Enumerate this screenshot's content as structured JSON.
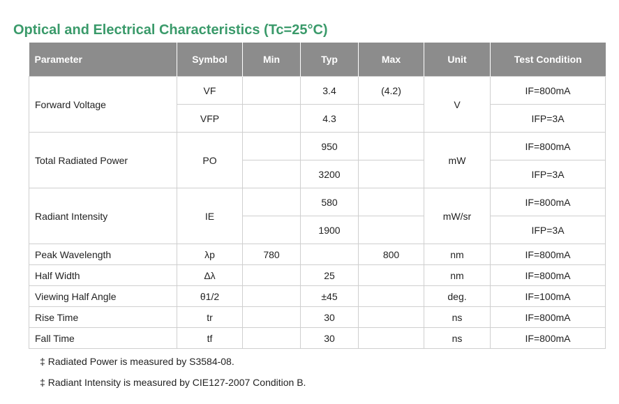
{
  "title": "Optical and Electrical Characteristics (Tc=25°C)",
  "headers": {
    "parameter": "Parameter",
    "symbol": "Symbol",
    "min": "Min",
    "typ": "Typ",
    "max": "Max",
    "unit": "Unit",
    "test_condition": "Test Condition"
  },
  "rows": {
    "forward_voltage": {
      "parameter": "Forward Voltage",
      "unit": "V",
      "sub": [
        {
          "symbol": "VF",
          "min": "",
          "typ": "3.4",
          "max": "(4.2)",
          "condition": "IF=800mA"
        },
        {
          "symbol": "VFP",
          "min": "",
          "typ": "4.3",
          "max": "",
          "condition": "IFP=3A"
        }
      ]
    },
    "total_radiated_power": {
      "parameter": "Total Radiated Power",
      "symbol": "PO",
      "unit": "mW",
      "sub": [
        {
          "min": "",
          "typ": "950",
          "max": "",
          "condition": "IF=800mA"
        },
        {
          "min": "",
          "typ": "3200",
          "max": "",
          "condition": "IFP=3A"
        }
      ]
    },
    "radiant_intensity": {
      "parameter": "Radiant Intensity",
      "symbol": "IE",
      "unit": "mW/sr",
      "sub": [
        {
          "min": "",
          "typ": "580",
          "max": "",
          "condition": "IF=800mA"
        },
        {
          "min": "",
          "typ": "1900",
          "max": "",
          "condition": "IFP=3A"
        }
      ]
    },
    "peak_wavelength": {
      "parameter": "Peak Wavelength",
      "symbol": "λp",
      "min": "780",
      "typ": "",
      "max": "800",
      "unit": "nm",
      "condition": "IF=800mA"
    },
    "half_width": {
      "parameter": "Half Width",
      "symbol": "Δλ",
      "min": "",
      "typ": "25",
      "max": "",
      "unit": "nm",
      "condition": "IF=800mA"
    },
    "viewing_half_angle": {
      "parameter": "Viewing Half Angle",
      "symbol": "θ1/2",
      "min": "",
      "typ": "±45",
      "max": "",
      "unit": "deg.",
      "condition": "IF=100mA"
    },
    "rise_time": {
      "parameter": "Rise Time",
      "symbol": "tr",
      "min": "",
      "typ": "30",
      "max": "",
      "unit": "ns",
      "condition": "IF=800mA"
    },
    "fall_time": {
      "parameter": "Fall Time",
      "symbol": "tf",
      "min": "",
      "typ": "30",
      "max": "",
      "unit": "ns",
      "condition": "IF=800mA"
    }
  },
  "notes": {
    "mark": "‡",
    "items": [
      "Radiated Power is measured by S3584-08.",
      "Radiant Intensity is measured by CIE127-2007 Condition B."
    ]
  }
}
